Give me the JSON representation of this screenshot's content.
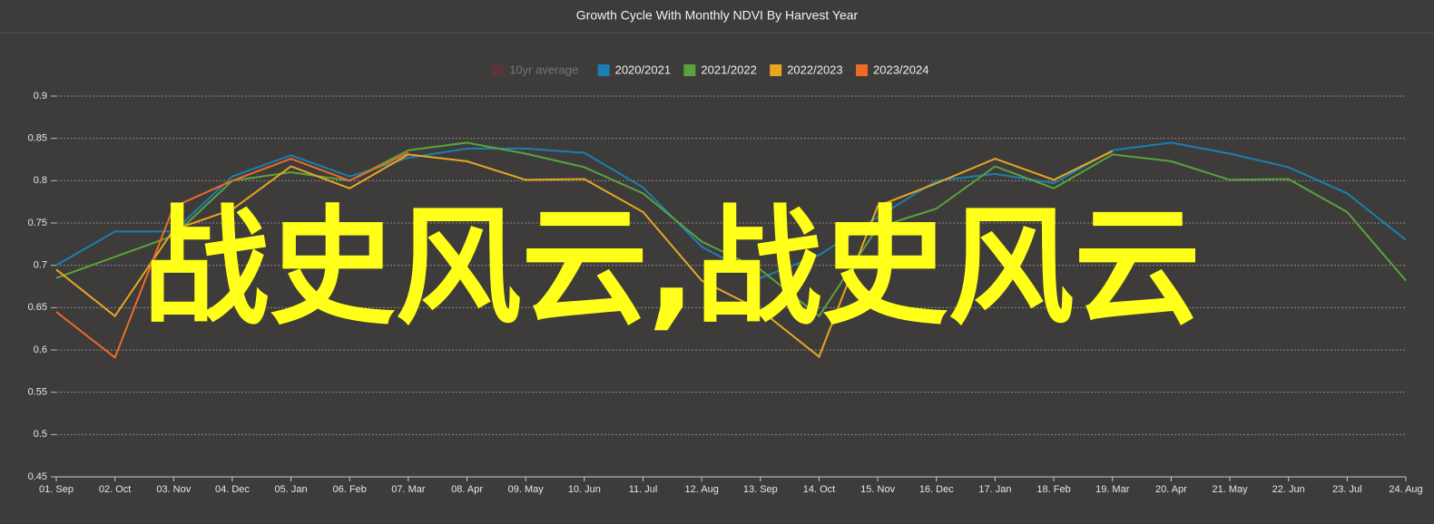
{
  "chart_data": {
    "type": "line",
    "title": "Growth Cycle With Monthly NDVI By Harvest Year",
    "overlay_text": "战史风云,战史风云",
    "categories": [
      "01. Sep",
      "02. Oct",
      "03. Nov",
      "04. Dec",
      "05. Jan",
      "06. Feb",
      "07. Mar",
      "08. Apr",
      "09. May",
      "10. Jun",
      "11. Jul",
      "12. Aug",
      "13. Sep",
      "14. Oct",
      "15. Nov",
      "16. Dec",
      "17. Jan",
      "18. Feb",
      "19. Mar",
      "20. Apr",
      "21. May",
      "22. Jun",
      "23. Jul",
      "24. Aug"
    ],
    "series": [
      {
        "name": "10yr average",
        "color": "#7a2d3e",
        "visible": false,
        "values": [
          null,
          null,
          null,
          null,
          null,
          null,
          null,
          null,
          null,
          null,
          null,
          null,
          null,
          null,
          null,
          null,
          null,
          null,
          null,
          null,
          null,
          null,
          null,
          null
        ]
      },
      {
        "name": "2020/2021",
        "color": "#1b7fb3",
        "values": [
          0.7,
          0.74,
          0.74,
          0.805,
          0.83,
          0.805,
          0.827,
          0.838,
          0.838,
          0.833,
          0.792,
          0.722,
          0.685,
          0.712,
          0.757,
          0.8,
          0.808,
          0.797,
          0.836,
          0.845,
          0.832,
          0.816,
          0.785,
          0.73
        ]
      },
      {
        "name": "2021/2022",
        "color": "#5aa33c",
        "values": [
          0.685,
          0.71,
          0.735,
          0.8,
          0.81,
          0.8,
          0.836,
          0.845,
          0.832,
          0.816,
          0.785,
          0.728,
          0.695,
          0.64,
          0.745,
          0.767,
          0.817,
          0.791,
          0.831,
          0.823,
          0.801,
          0.802,
          0.763,
          0.682
        ]
      },
      {
        "name": "2022/2023",
        "color": "#e9a622",
        "values": [
          0.695,
          0.64,
          0.742,
          0.766,
          0.817,
          0.791,
          0.831,
          0.823,
          0.801,
          0.802,
          0.763,
          0.682,
          0.647,
          0.592,
          0.77,
          0.797,
          0.826,
          0.801,
          0.835,
          null,
          null,
          null,
          null,
          null
        ]
      },
      {
        "name": "2023/2024",
        "color": "#f06a28",
        "values": [
          0.645,
          0.591,
          0.769,
          0.8,
          0.826,
          0.8,
          0.833,
          null,
          null,
          null,
          null,
          null,
          null,
          null,
          null,
          null,
          null,
          null,
          null,
          null,
          null,
          null,
          null,
          null
        ]
      }
    ],
    "ylim": [
      0.45,
      0.9
    ],
    "yticks": [
      0.45,
      0.5,
      0.55,
      0.6,
      0.65,
      0.7,
      0.75,
      0.8,
      0.85,
      0.9
    ],
    "grid": true,
    "legend": "top"
  }
}
